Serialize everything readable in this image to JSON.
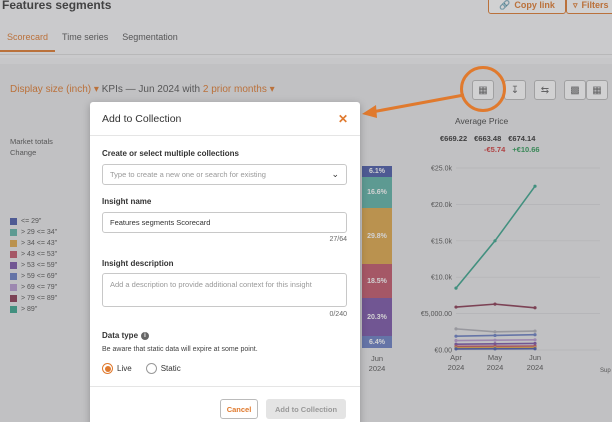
{
  "header": {
    "title": "Features segments",
    "copy_link": "Copy link",
    "filters": "Filters"
  },
  "tabs": [
    {
      "label": "Scorecard",
      "active": true
    },
    {
      "label": "Time series",
      "active": false
    },
    {
      "label": "Segmentation",
      "active": false
    }
  ],
  "kpi": {
    "dimension": "Display size (inch)",
    "middle": "KPIs — Jun 2024 with",
    "period": "2 prior months"
  },
  "left_labels": {
    "market_totals": "Market totals",
    "change": "Change"
  },
  "legend": [
    {
      "label": "<= 29\"",
      "color": "#4a5aa8"
    },
    {
      "label": "> 29 <= 34\"",
      "color": "#5fb3a7"
    },
    {
      "label": "> 34 <= 43\"",
      "color": "#e0a84a"
    },
    {
      "label": "> 43 <= 53\"",
      "color": "#c2566a"
    },
    {
      "label": "> 53 <= 59\"",
      "color": "#7b55a8"
    },
    {
      "label": "> 59 <= 69\"",
      "color": "#6a7fc4"
    },
    {
      "label": "> 69 <= 79\"",
      "color": "#b89ad0"
    },
    {
      "label": "> 79 <= 89\"",
      "color": "#8a3a52"
    },
    {
      "label": "> 89\"",
      "color": "#3aa58c"
    }
  ],
  "stacked_segments": [
    {
      "label": "6.1%",
      "color": "#4a5aa8",
      "share": 6.1
    },
    {
      "label": "16.6%",
      "color": "#5fb3a7",
      "share": 16.6
    },
    {
      "label": "29.8%",
      "color": "#e0a84a",
      "share": 29.8
    },
    {
      "label": "18.5%",
      "color": "#c2566a",
      "share": 18.5
    },
    {
      "label": "20.3%",
      "color": "#7b55a8",
      "share": 20.3
    },
    {
      "label": "6.4%",
      "color": "#6a7fc4",
      "share": 6.4
    }
  ],
  "stacked_x_label": {
    "month": "Jun",
    "year": "2024"
  },
  "avg_price": {
    "title": "Average Price",
    "values": [
      "€669.22",
      "€663.48",
      "€674.14"
    ],
    "changes": [
      "-€5.74",
      "+€10.66"
    ]
  },
  "side_text": "Sup",
  "chart_data": {
    "type": "line",
    "title": "Average Price",
    "categories": [
      "Apr 2024",
      "May 2024",
      "Jun 2024"
    ],
    "x_ticks": [
      {
        "month": "Apr",
        "year": "2024"
      },
      {
        "month": "May",
        "year": "2024"
      },
      {
        "month": "Jun",
        "year": "2024"
      }
    ],
    "y_ticks": [
      "€0.00",
      "€5,000.00",
      "€10.0k",
      "€15.0k",
      "€20.0k",
      "€25.0k"
    ],
    "ylim": [
      0,
      25000
    ],
    "grid": true,
    "series": [
      {
        "color": "#3aa58c",
        "values": [
          8500,
          15000,
          22500
        ]
      },
      {
        "color": "#8a3a52",
        "values": [
          5900,
          6300,
          5800
        ]
      },
      {
        "color": "#b0b0b8",
        "values": [
          2900,
          2500,
          2600
        ]
      },
      {
        "color": "#6a7fc4",
        "values": [
          1900,
          2000,
          2100
        ]
      },
      {
        "color": "#b89ad0",
        "values": [
          1300,
          1350,
          1400
        ]
      },
      {
        "color": "#7b55a8",
        "values": [
          800,
          850,
          900
        ]
      },
      {
        "color": "#c2566a",
        "values": [
          500,
          520,
          540
        ]
      },
      {
        "color": "#e0a84a",
        "values": [
          300,
          320,
          330
        ]
      },
      {
        "color": "#4a5aa8",
        "values": [
          150,
          160,
          170
        ]
      }
    ]
  },
  "modal": {
    "title": "Add to Collection",
    "collections_label": "Create or select multiple collections",
    "collections_placeholder": "Type to create a new one or search for existing",
    "insight_name_label": "Insight name",
    "insight_name_value": "Features segments Scorecard",
    "insight_name_counter": "27/64",
    "description_label": "Insight description",
    "description_placeholder": "Add a description to provide additional context for this insight",
    "description_counter": "0/240",
    "data_type_label": "Data type",
    "data_type_hint": "Be aware that static data will expire at some point.",
    "option_live": "Live",
    "option_static": "Static",
    "cancel": "Cancel",
    "add": "Add to Collection"
  }
}
